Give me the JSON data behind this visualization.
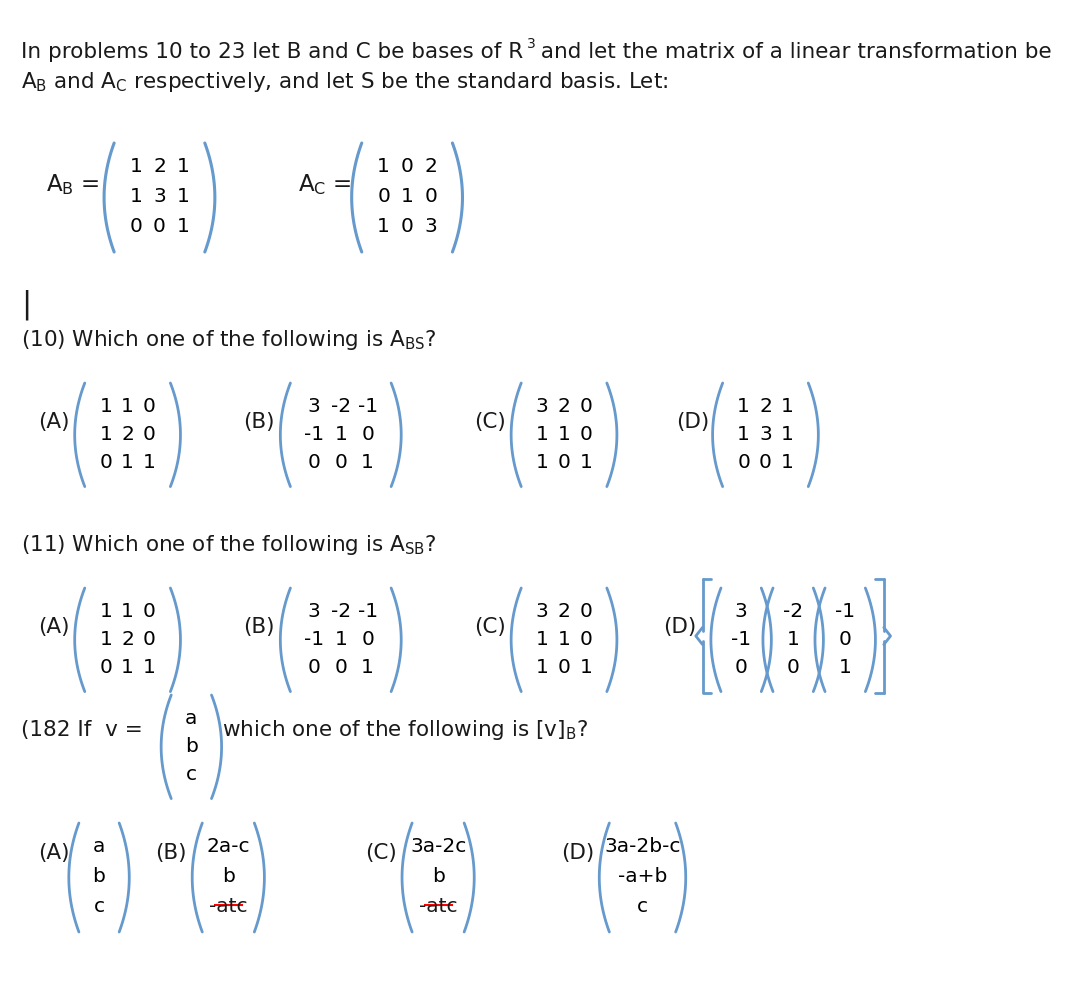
{
  "bg_color": "#ffffff",
  "text_color": "#1a1a1a",
  "bracket_color": "#6699cc",
  "font_size_body": 15.5,
  "font_size_matrix": 14.5,
  "font_size_label": 15.5,
  "header1": "In problems 10 to 23 let B and C be bases of R",
  "header1b": " and let the matrix of a linear transformation be",
  "header2": "A",
  "header2b": " and A",
  "header2c": " respectively, and let S be the standard basis. Let:",
  "AB_matrix": [
    [
      "1",
      "2",
      "1"
    ],
    [
      "1",
      "3",
      "1"
    ],
    [
      "0",
      "0",
      "1"
    ]
  ],
  "AC_matrix": [
    [
      "1",
      "0",
      "2"
    ],
    [
      "0",
      "1",
      "0"
    ],
    [
      "1",
      "0",
      "3"
    ]
  ],
  "q10_A": [
    [
      "1",
      "1",
      "0"
    ],
    [
      "1",
      "2",
      "0"
    ],
    [
      "0",
      "1",
      "1"
    ]
  ],
  "q10_B": [
    [
      "3",
      "-2",
      "-1"
    ],
    [
      "-1",
      "1",
      "0"
    ],
    [
      "0",
      "0",
      "1"
    ]
  ],
  "q10_C": [
    [
      "3",
      "2",
      "0"
    ],
    [
      "1",
      "1",
      "0"
    ],
    [
      "1",
      "0",
      "1"
    ]
  ],
  "q10_D": [
    [
      "1",
      "2",
      "1"
    ],
    [
      "1",
      "3",
      "1"
    ],
    [
      "0",
      "0",
      "1"
    ]
  ],
  "q11_A": [
    [
      "1",
      "1",
      "0"
    ],
    [
      "1",
      "2",
      "0"
    ],
    [
      "0",
      "1",
      "1"
    ]
  ],
  "q11_B": [
    [
      "3",
      "-2",
      "-1"
    ],
    [
      "-1",
      "1",
      "0"
    ],
    [
      "0",
      "0",
      "1"
    ]
  ],
  "q11_C": [
    [
      "3",
      "2",
      "0"
    ],
    [
      "1",
      "1",
      "0"
    ],
    [
      "1",
      "0",
      "1"
    ]
  ],
  "q11_D1": [
    "3",
    "-1",
    "0"
  ],
  "q11_D2": [
    "-2",
    "1",
    "0"
  ],
  "q11_D3": [
    "-1",
    "0",
    "1"
  ],
  "q182_A": [
    "a",
    "b",
    "c"
  ],
  "q182_B": [
    "2a-c",
    "b",
    "-atc"
  ],
  "q182_C": [
    "3a-2c",
    "b",
    "-atc"
  ],
  "q182_D": [
    "3a-2b-c",
    "-a+b",
    "c"
  ]
}
